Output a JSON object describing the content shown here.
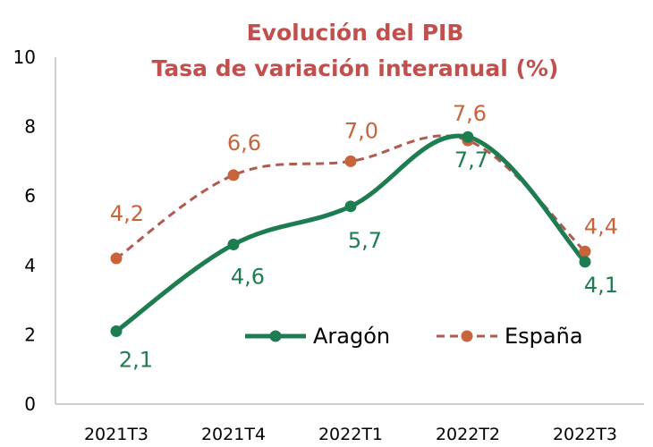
{
  "chart_data": {
    "type": "line",
    "title": "Evolución del PIB",
    "subtitle": "Tasa de variación interanual (%)",
    "categories": [
      "2021T3",
      "2021T4",
      "2022T1",
      "2022T2",
      "2022T3"
    ],
    "ylim": [
      0,
      10
    ],
    "yticks": [
      "0",
      "2",
      "4",
      "6",
      "8",
      "10"
    ],
    "grid": false,
    "legend": "inside-bottom-right",
    "series": [
      {
        "name": "Aragón",
        "values": [
          2.1,
          4.6,
          5.7,
          7.7,
          4.1
        ],
        "labels": [
          "2,1",
          "4,6",
          "5,7",
          "7,7",
          "4,1"
        ],
        "style": "solid"
      },
      {
        "name": "España",
        "values": [
          4.2,
          6.6,
          7.0,
          7.6,
          4.4
        ],
        "labels": [
          "4,2",
          "6,6",
          "7,0",
          "7,6",
          "4,4"
        ],
        "style": "dashed"
      }
    ]
  },
  "colors": {
    "title": "#c0504d",
    "aragon": "#1e7d50",
    "espana_line": "#b05a50",
    "espana_marker": "#c8643c",
    "axis": "#bfbfbf"
  }
}
